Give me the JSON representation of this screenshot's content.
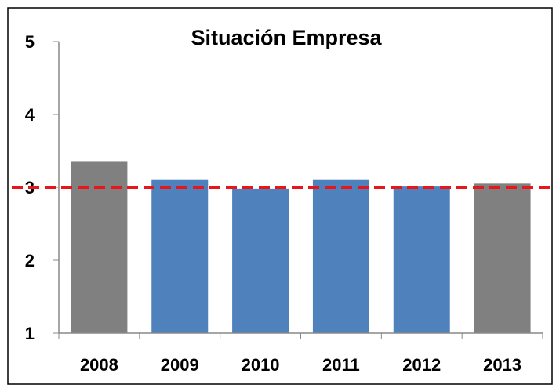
{
  "chart_data": {
    "type": "bar",
    "title": "Situación Empresa",
    "categories": [
      "2008",
      "2009",
      "2010",
      "2011",
      "2012",
      "2013"
    ],
    "values": [
      3.35,
      3.1,
      2.98,
      3.1,
      3.02,
      3.05
    ],
    "colors": [
      "#808080",
      "#4f81bd",
      "#4f81bd",
      "#4f81bd",
      "#4f81bd",
      "#808080"
    ],
    "ylim": [
      1,
      5
    ],
    "yticks": [
      1,
      2,
      3,
      4,
      5
    ],
    "grid": false,
    "reference_line": {
      "value": 3,
      "color": "#e8161b"
    }
  }
}
